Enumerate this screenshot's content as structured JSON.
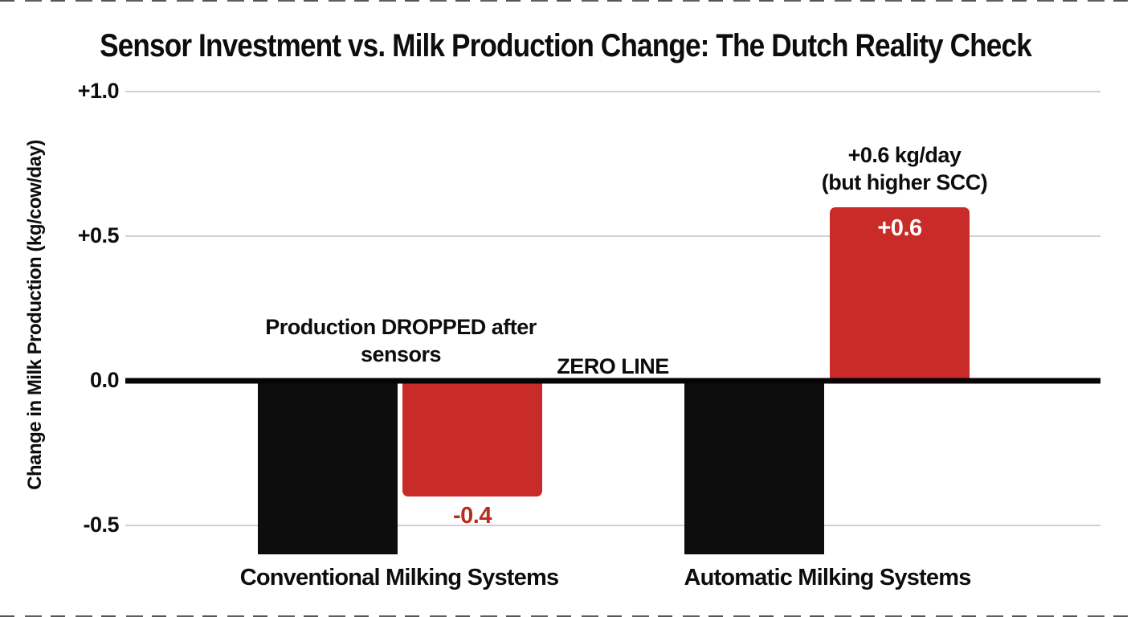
{
  "title": "Sensor Investment vs. Milk Production Change: The Dutch Reality Check",
  "y_axis": {
    "label": "Change in Milk Production (kg/cow/day)",
    "ticks": [
      {
        "value": 1.0,
        "label": "+1.0"
      },
      {
        "value": 0.5,
        "label": "+0.5"
      },
      {
        "value": 0.0,
        "label": "0.0"
      },
      {
        "value": -0.5,
        "label": "-0.5"
      }
    ]
  },
  "x_axis": {
    "categories": [
      "Conventional Milking Systems",
      "Automatic Milking Systems"
    ]
  },
  "annotations": {
    "dropped_line1": "Production DROPPED after",
    "dropped_line2": "sensors",
    "zero_line": "ZERO LINE",
    "amr_line1": "+0.6 kg/day",
    "amr_line2": "(but higher SCC)"
  },
  "colors": {
    "bar_black": "#0d0d0d",
    "bar_red": "#c82b28",
    "value_label_red": "#bd2a1f",
    "value_label_white": "#ffffff",
    "gridline": "#cfcfcf",
    "zero_line": "#050505",
    "text": "#0d0d0d"
  },
  "chart_data": {
    "type": "bar",
    "title": "Sensor Investment vs. Milk Production Change: The Dutch Reality Check",
    "xlabel": "",
    "ylabel": "Change in Milk Production (kg/cow/day)",
    "ylim": [
      -0.65,
      1.0
    ],
    "grid": "horizontal",
    "legend": "none",
    "zero_line": true,
    "zero_line_annotation": "ZERO LINE",
    "categories": [
      "Conventional Milking Systems",
      "Automatic Milking Systems"
    ],
    "category_keys": [
      "conventional",
      "automatic"
    ],
    "yticks": [
      {
        "value": 1.0,
        "label": "+1.0"
      },
      {
        "value": 0.5,
        "label": "+0.5"
      },
      {
        "value": 0.0,
        "label": "0.0"
      },
      {
        "value": -0.5,
        "label": "-0.5"
      }
    ],
    "series": [
      {
        "key": "black",
        "name": "black bars (unlabeled, extend below axis)",
        "color": "#0d0d0d",
        "rounded": false,
        "values": [
          -0.6,
          -0.6
        ],
        "value_labels": [
          null,
          null
        ]
      },
      {
        "key": "red",
        "name": "red bars (milk production change)",
        "color": "#c82b28",
        "rounded": true,
        "values": [
          -0.4,
          0.6
        ],
        "value_labels": [
          {
            "text": "-0.4",
            "placement": "below",
            "color": "#bd2a1f"
          },
          {
            "text": "+0.6",
            "placement": "inside-top",
            "color": "#ffffff"
          }
        ]
      }
    ],
    "annotations": [
      {
        "text": "Production DROPPED after sensors",
        "target": "Conventional Milking Systems"
      },
      {
        "text": "ZERO LINE",
        "target": "zero axis"
      },
      {
        "text": "+0.6 kg/day (but higher SCC)",
        "target": "Automatic Milking Systems"
      }
    ]
  }
}
